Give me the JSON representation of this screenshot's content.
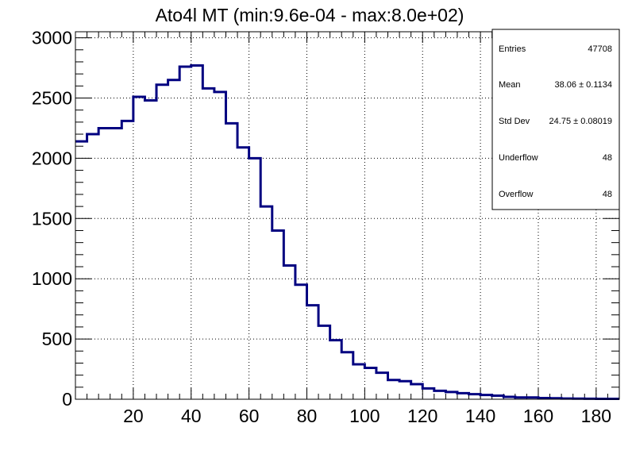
{
  "chart_data": {
    "type": "histogram",
    "title": "Ato4l MT (min:9.6e-04 - max:8.0e+02)",
    "xlabel": "",
    "ylabel": "",
    "xlim": [
      0,
      188
    ],
    "ylim": [
      0,
      3050
    ],
    "bin_width": 4,
    "x_ticks": [
      20,
      40,
      60,
      80,
      100,
      120,
      140,
      160,
      180
    ],
    "y_ticks": [
      0,
      500,
      1000,
      1500,
      2000,
      2500,
      3000
    ],
    "grid": true,
    "line_color": "#000080",
    "bins": [
      {
        "x_low": 0,
        "value": 2140
      },
      {
        "x_low": 4,
        "value": 2200
      },
      {
        "x_low": 8,
        "value": 2250
      },
      {
        "x_low": 12,
        "value": 2250
      },
      {
        "x_low": 16,
        "value": 2310
      },
      {
        "x_low": 20,
        "value": 2510
      },
      {
        "x_low": 24,
        "value": 2480
      },
      {
        "x_low": 28,
        "value": 2610
      },
      {
        "x_low": 32,
        "value": 2650
      },
      {
        "x_low": 36,
        "value": 2760
      },
      {
        "x_low": 40,
        "value": 2770
      },
      {
        "x_low": 44,
        "value": 2580
      },
      {
        "x_low": 48,
        "value": 2550
      },
      {
        "x_low": 52,
        "value": 2290
      },
      {
        "x_low": 56,
        "value": 2090
      },
      {
        "x_low": 60,
        "value": 2000
      },
      {
        "x_low": 64,
        "value": 1600
      },
      {
        "x_low": 68,
        "value": 1400
      },
      {
        "x_low": 72,
        "value": 1110
      },
      {
        "x_low": 76,
        "value": 950
      },
      {
        "x_low": 80,
        "value": 780
      },
      {
        "x_low": 84,
        "value": 610
      },
      {
        "x_low": 88,
        "value": 490
      },
      {
        "x_low": 92,
        "value": 390
      },
      {
        "x_low": 96,
        "value": 290
      },
      {
        "x_low": 100,
        "value": 260
      },
      {
        "x_low": 104,
        "value": 220
      },
      {
        "x_low": 108,
        "value": 160
      },
      {
        "x_low": 112,
        "value": 150
      },
      {
        "x_low": 116,
        "value": 125
      },
      {
        "x_low": 120,
        "value": 90
      },
      {
        "x_low": 124,
        "value": 70
      },
      {
        "x_low": 128,
        "value": 60
      },
      {
        "x_low": 132,
        "value": 50
      },
      {
        "x_low": 136,
        "value": 42
      },
      {
        "x_low": 140,
        "value": 35
      },
      {
        "x_low": 144,
        "value": 30
      },
      {
        "x_low": 148,
        "value": 20
      },
      {
        "x_low": 152,
        "value": 15
      },
      {
        "x_low": 156,
        "value": 15
      },
      {
        "x_low": 160,
        "value": 10
      },
      {
        "x_low": 164,
        "value": 8
      },
      {
        "x_low": 168,
        "value": 6
      },
      {
        "x_low": 172,
        "value": 5
      },
      {
        "x_low": 176,
        "value": 4
      },
      {
        "x_low": 180,
        "value": 3
      },
      {
        "x_low": 184,
        "value": 3
      }
    ],
    "stats": {
      "entries_label": "Entries",
      "entries_value": "47708",
      "mean_label": "Mean",
      "mean_value": "38.06 ± 0.1134",
      "stddev_label": "Std Dev",
      "stddev_value": "24.75 ± 0.08019",
      "underflow_label": "Underflow",
      "underflow_value": "48",
      "overflow_label": "Overflow",
      "overflow_value": "48"
    }
  }
}
